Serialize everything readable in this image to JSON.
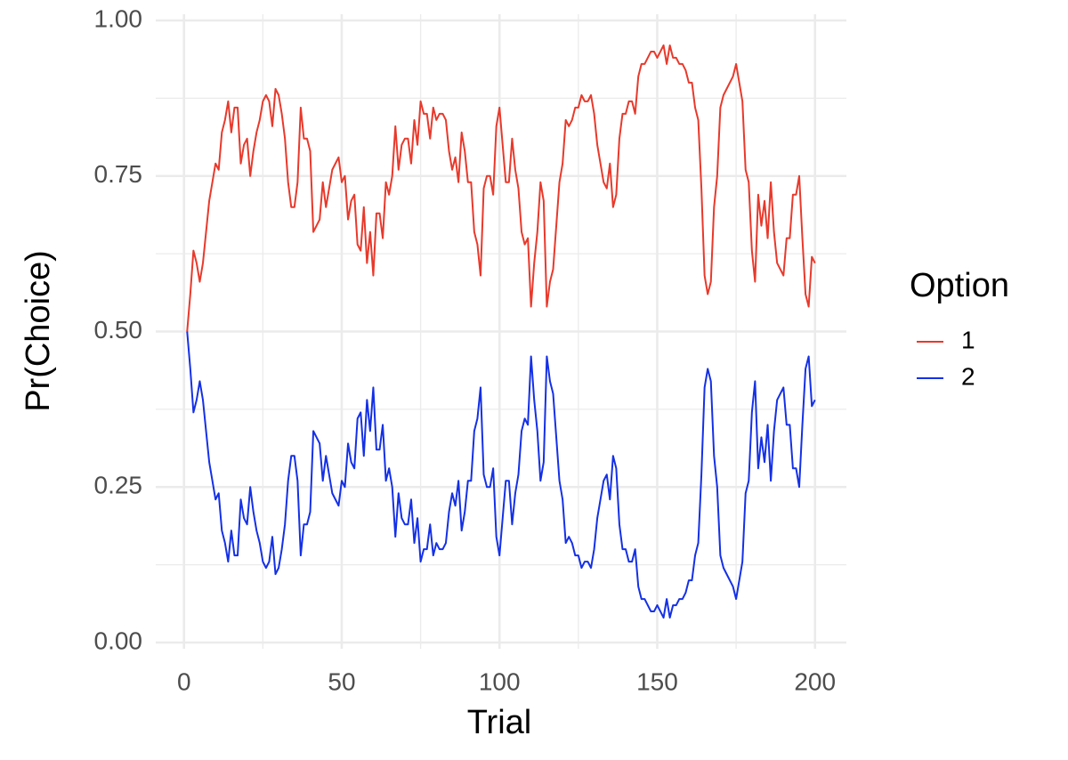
{
  "chart_data": {
    "type": "line",
    "xlabel": "Trial",
    "ylabel": "Pr(Choice)",
    "legend_title": "Option",
    "legend": "right",
    "grid": true,
    "x": [
      1,
      2,
      3,
      4,
      5,
      6,
      7,
      8,
      9,
      10,
      11,
      12,
      13,
      14,
      15,
      16,
      17,
      18,
      19,
      20,
      21,
      22,
      23,
      24,
      25,
      26,
      27,
      28,
      29,
      30,
      31,
      32,
      33,
      34,
      35,
      36,
      37,
      38,
      39,
      40,
      41,
      42,
      43,
      44,
      45,
      46,
      47,
      48,
      49,
      50,
      51,
      52,
      53,
      54,
      55,
      56,
      57,
      58,
      59,
      60,
      61,
      62,
      63,
      64,
      65,
      66,
      67,
      68,
      69,
      70,
      71,
      72,
      73,
      74,
      75,
      76,
      77,
      78,
      79,
      80,
      81,
      82,
      83,
      84,
      85,
      86,
      87,
      88,
      89,
      90,
      91,
      92,
      93,
      94,
      95,
      96,
      97,
      98,
      99,
      100,
      101,
      102,
      103,
      104,
      105,
      106,
      107,
      108,
      109,
      110,
      111,
      112,
      113,
      114,
      115,
      116,
      117,
      118,
      119,
      120,
      121,
      122,
      123,
      124,
      125,
      126,
      127,
      128,
      129,
      130,
      131,
      132,
      133,
      134,
      135,
      136,
      137,
      138,
      139,
      140,
      141,
      142,
      143,
      144,
      145,
      146,
      147,
      148,
      149,
      150,
      151,
      152,
      153,
      154,
      155,
      156,
      157,
      158,
      159,
      160,
      161,
      162,
      163,
      164,
      165,
      166,
      167,
      168,
      169,
      170,
      171,
      172,
      173,
      174,
      175,
      176,
      177,
      178,
      179,
      180,
      181,
      182,
      183,
      184,
      185,
      186,
      187,
      188,
      189,
      190,
      191,
      192,
      193,
      194,
      195,
      196,
      197,
      198,
      199,
      200
    ],
    "series": [
      {
        "name": "1",
        "color": "#e8392b",
        "values": [
          0.5,
          0.56,
          0.63,
          0.61,
          0.58,
          0.61,
          0.66,
          0.71,
          0.74,
          0.77,
          0.76,
          0.82,
          0.84,
          0.87,
          0.82,
          0.86,
          0.86,
          0.77,
          0.8,
          0.81,
          0.75,
          0.79,
          0.82,
          0.84,
          0.87,
          0.88,
          0.87,
          0.83,
          0.89,
          0.88,
          0.85,
          0.81,
          0.74,
          0.7,
          0.7,
          0.74,
          0.86,
          0.81,
          0.81,
          0.79,
          0.66,
          0.67,
          0.68,
          0.74,
          0.7,
          0.73,
          0.76,
          0.77,
          0.78,
          0.74,
          0.75,
          0.68,
          0.71,
          0.72,
          0.64,
          0.63,
          0.7,
          0.61,
          0.66,
          0.59,
          0.69,
          0.69,
          0.65,
          0.74,
          0.72,
          0.75,
          0.83,
          0.76,
          0.8,
          0.81,
          0.81,
          0.77,
          0.84,
          0.8,
          0.87,
          0.85,
          0.85,
          0.81,
          0.86,
          0.84,
          0.85,
          0.85,
          0.84,
          0.79,
          0.76,
          0.78,
          0.74,
          0.82,
          0.79,
          0.74,
          0.74,
          0.66,
          0.64,
          0.59,
          0.73,
          0.75,
          0.75,
          0.72,
          0.83,
          0.86,
          0.8,
          0.74,
          0.74,
          0.81,
          0.76,
          0.73,
          0.66,
          0.64,
          0.65,
          0.54,
          0.61,
          0.66,
          0.74,
          0.71,
          0.54,
          0.58,
          0.6,
          0.67,
          0.74,
          0.77,
          0.84,
          0.83,
          0.84,
          0.86,
          0.86,
          0.88,
          0.87,
          0.87,
          0.88,
          0.85,
          0.8,
          0.77,
          0.74,
          0.73,
          0.77,
          0.7,
          0.72,
          0.81,
          0.85,
          0.85,
          0.87,
          0.87,
          0.85,
          0.91,
          0.93,
          0.93,
          0.94,
          0.95,
          0.95,
          0.94,
          0.95,
          0.96,
          0.93,
          0.96,
          0.94,
          0.94,
          0.93,
          0.93,
          0.92,
          0.9,
          0.9,
          0.86,
          0.84,
          0.73,
          0.59,
          0.56,
          0.58,
          0.7,
          0.75,
          0.86,
          0.88,
          0.89,
          0.9,
          0.91,
          0.93,
          0.9,
          0.87,
          0.76,
          0.74,
          0.63,
          0.58,
          0.72,
          0.67,
          0.71,
          0.65,
          0.74,
          0.66,
          0.61,
          0.6,
          0.59,
          0.65,
          0.65,
          0.72,
          0.72,
          0.75,
          0.65,
          0.56,
          0.54,
          0.62,
          0.61
        ]
      },
      {
        "name": "2",
        "color": "#1430e6",
        "values": [
          0.5,
          0.44,
          0.37,
          0.39,
          0.42,
          0.39,
          0.34,
          0.29,
          0.26,
          0.23,
          0.24,
          0.18,
          0.16,
          0.13,
          0.18,
          0.14,
          0.14,
          0.23,
          0.2,
          0.19,
          0.25,
          0.21,
          0.18,
          0.16,
          0.13,
          0.12,
          0.13,
          0.17,
          0.11,
          0.12,
          0.15,
          0.19,
          0.26,
          0.3,
          0.3,
          0.26,
          0.14,
          0.19,
          0.19,
          0.21,
          0.34,
          0.33,
          0.32,
          0.26,
          0.3,
          0.27,
          0.24,
          0.23,
          0.22,
          0.26,
          0.25,
          0.32,
          0.29,
          0.28,
          0.36,
          0.37,
          0.3,
          0.39,
          0.34,
          0.41,
          0.31,
          0.31,
          0.35,
          0.26,
          0.28,
          0.25,
          0.17,
          0.24,
          0.2,
          0.19,
          0.19,
          0.23,
          0.16,
          0.2,
          0.13,
          0.15,
          0.15,
          0.19,
          0.14,
          0.16,
          0.15,
          0.15,
          0.16,
          0.21,
          0.24,
          0.22,
          0.26,
          0.18,
          0.21,
          0.26,
          0.26,
          0.34,
          0.36,
          0.41,
          0.27,
          0.25,
          0.25,
          0.28,
          0.17,
          0.14,
          0.2,
          0.26,
          0.26,
          0.19,
          0.24,
          0.27,
          0.34,
          0.36,
          0.35,
          0.46,
          0.39,
          0.34,
          0.26,
          0.29,
          0.46,
          0.42,
          0.4,
          0.33,
          0.26,
          0.23,
          0.16,
          0.17,
          0.16,
          0.14,
          0.14,
          0.12,
          0.13,
          0.13,
          0.12,
          0.15,
          0.2,
          0.23,
          0.26,
          0.27,
          0.23,
          0.3,
          0.28,
          0.19,
          0.15,
          0.15,
          0.13,
          0.13,
          0.15,
          0.09,
          0.07,
          0.07,
          0.06,
          0.05,
          0.05,
          0.06,
          0.05,
          0.04,
          0.07,
          0.04,
          0.06,
          0.06,
          0.07,
          0.07,
          0.08,
          0.1,
          0.1,
          0.14,
          0.16,
          0.27,
          0.41,
          0.44,
          0.42,
          0.3,
          0.25,
          0.14,
          0.12,
          0.11,
          0.1,
          0.09,
          0.07,
          0.1,
          0.13,
          0.24,
          0.26,
          0.37,
          0.42,
          0.28,
          0.33,
          0.29,
          0.35,
          0.26,
          0.34,
          0.39,
          0.4,
          0.41,
          0.35,
          0.35,
          0.28,
          0.28,
          0.25,
          0.35,
          0.44,
          0.46,
          0.38,
          0.39
        ]
      }
    ],
    "xlim": [
      -8.95,
      209.95
    ],
    "xticks": [
      0,
      50,
      100,
      150,
      200
    ],
    "ylim": [
      -0.01,
      1.01
    ],
    "yticks": [
      {
        "value": 0,
        "label": "0.00"
      },
      {
        "value": 0.25,
        "label": "0.25"
      },
      {
        "value": 0.5,
        "label": "0.50"
      },
      {
        "value": 0.75,
        "label": "0.75"
      },
      {
        "value": 1,
        "label": "1.00"
      }
    ]
  }
}
